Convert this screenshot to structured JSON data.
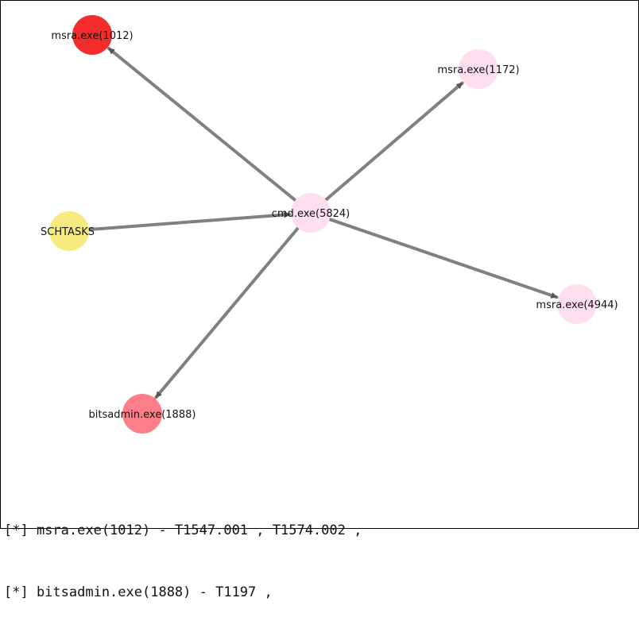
{
  "graph": {
    "edge_color": "#808080",
    "nodes": [
      {
        "id": "center",
        "label": "cmd.exe(5824)",
        "color": "#ffdfee"
      },
      {
        "id": "n1012",
        "label": "msra.exe(1012)",
        "color": "#f42c2c"
      },
      {
        "id": "n1172",
        "label": "msra.exe(1172)",
        "color": "#ffdfee"
      },
      {
        "id": "sch",
        "label": "SCHTASKS",
        "color": "#f7eb7f"
      },
      {
        "id": "n4944",
        "label": "msra.exe(4944)",
        "color": "#ffdfee"
      },
      {
        "id": "n1888",
        "label": "bitsadmin.exe(1888)",
        "color": "#fc7e89"
      }
    ],
    "edges": [
      {
        "from": "center",
        "to": "n1012"
      },
      {
        "from": "center",
        "to": "n1172"
      },
      {
        "from": "sch",
        "to": "center"
      },
      {
        "from": "center",
        "to": "n4944"
      },
      {
        "from": "center",
        "to": "n1888"
      }
    ]
  },
  "log": {
    "lines": [
      "[*] msra.exe(1012) - T1547.001 , T1574.002 ,",
      "[*] bitsadmin.exe(1888) - T1197 ,"
    ]
  }
}
